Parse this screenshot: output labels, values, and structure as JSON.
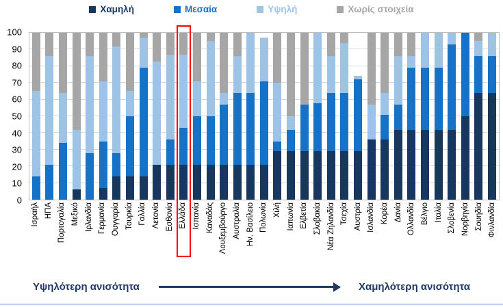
{
  "colors": {
    "low": "#17375E",
    "medium": "#1572C6",
    "high": "#9DC3E6",
    "nodata": "#A6A6A6",
    "gridline": "#D9D9D9",
    "plot_border": "#BFBFBF",
    "highlight_box": "#FF0000",
    "footer_text": "#1F3864",
    "bottom_rule": "#BDD7EE"
  },
  "legend": {
    "items": [
      {
        "label": "Χαμηλή",
        "color": "#17375E"
      },
      {
        "label": "Μεσαία",
        "color": "#1572C6"
      },
      {
        "label": "Υψηλή",
        "color": "#9DC3E6"
      },
      {
        "label": "Χωρίς στοιχεία",
        "color": "#A6A6A6"
      }
    ]
  },
  "chart_data": {
    "type": "bar",
    "stacked": true,
    "grid": true,
    "legend_position": "top",
    "ylim": [
      0,
      100
    ],
    "yticks": [
      0,
      10,
      20,
      30,
      40,
      50,
      60,
      70,
      80,
      90,
      100
    ],
    "categories": [
      "Ισραήλ",
      "ΗΠΑ",
      "Πορτογαλία",
      "Μεξικό",
      "Ιρλανδία",
      "Γερμανία",
      "Ουγγαρία",
      "Τουρκία",
      "Γαλλία",
      "Λετονία",
      "Εσθονία",
      "Ελλάδα",
      "Ισπανία",
      "Καναδάς",
      "Λουξεμβούργο",
      "Αυστραλία",
      "Ην. Βασίλειο",
      "Πολωνία",
      "Χιλή",
      "Ιαπωνία",
      "Ελβετία",
      "Σλοβακία",
      "Νέα Ζηλανδία",
      "Τσεχία",
      "Αυστρία",
      "Ισλανδία",
      "Κορέα",
      "Δανία",
      "Ολλανδία",
      "Βέλγιο",
      "Ιταλία",
      "Σλοβενία",
      "Νορβηγία",
      "Σουηδία",
      "Φινλανδία"
    ],
    "series": [
      {
        "name": "Χαμηλή",
        "color": "#17375E",
        "values": [
          0,
          0,
          0,
          6,
          0,
          7,
          14,
          14,
          14,
          21,
          21,
          21,
          21,
          21,
          21,
          21,
          21,
          21,
          29,
          29,
          29,
          29,
          29,
          29,
          29,
          36,
          36,
          42,
          42,
          42,
          42,
          42,
          50,
          64,
          64
        ]
      },
      {
        "name": "Μεσαία",
        "color": "#1572C6",
        "values": [
          14,
          21,
          34,
          0,
          28,
          28,
          14,
          36,
          65,
          0,
          15,
          22,
          29,
          29,
          36,
          43,
          43,
          50,
          6,
          13,
          28,
          29,
          35,
          35,
          43,
          0,
          15,
          15,
          37,
          37,
          37,
          51,
          50,
          22,
          22
        ]
      },
      {
        "name": "Υψηλή",
        "color": "#9DC3E6",
        "values": [
          51,
          65,
          30,
          36,
          58,
          36,
          64,
          15,
          18,
          62,
          51,
          44,
          21,
          45,
          7,
          22,
          36,
          26,
          35,
          8,
          0,
          42,
          22,
          30,
          2,
          21,
          13,
          29,
          7,
          21,
          21,
          7,
          0,
          9,
          14
        ]
      },
      {
        "name": "Χωρίς στοιχεία",
        "color": "#A6A6A6",
        "values": [
          35,
          14,
          36,
          58,
          14,
          29,
          8,
          35,
          3,
          17,
          13,
          13,
          29,
          5,
          36,
          14,
          0,
          0,
          30,
          50,
          43,
          0,
          14,
          6,
          0,
          43,
          36,
          14,
          14,
          0,
          0,
          0,
          0,
          5,
          0
        ]
      }
    ],
    "highlight": {
      "category": "Ελλάδα",
      "index": 11
    }
  },
  "footer": {
    "left_label": "Υψηλότερη ανισότητα",
    "right_label": "Χαμηλότερη ανισότητα"
  }
}
